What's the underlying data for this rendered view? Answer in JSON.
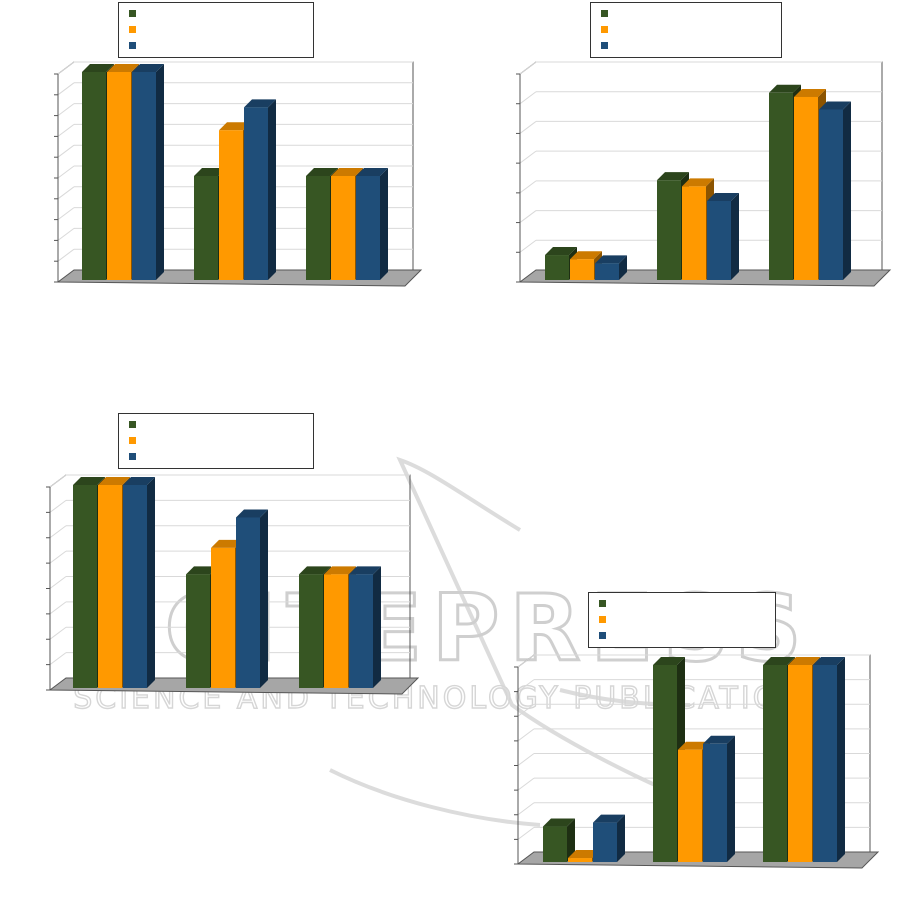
{
  "colors": {
    "series": [
      "#375623",
      "#ff9900",
      "#1f4e79"
    ],
    "floor": "#a6a6a6",
    "grid": "#d9d9d9"
  },
  "watermark": {
    "main": "SCITEPRESS",
    "sub": "SCIENCE AND TECHNOLOGY PUBLICATIONS"
  },
  "chart_data": [
    {
      "type": "bar",
      "categories": [
        "",
        "",
        ""
      ],
      "series": [
        {
          "name": "",
          "values": [
            100,
            50,
            50
          ]
        },
        {
          "name": "",
          "values": [
            100,
            72,
            50
          ]
        },
        {
          "name": "",
          "values": [
            100,
            83,
            50
          ]
        }
      ],
      "ylim": [
        0,
        100
      ],
      "gridlines": 10,
      "grid": true,
      "legend": "top"
    },
    {
      "type": "bar",
      "categories": [
        "",
        "",
        ""
      ],
      "series": [
        {
          "name": "",
          "values": [
            12,
            48,
            90
          ]
        },
        {
          "name": "",
          "values": [
            10,
            45,
            88
          ]
        },
        {
          "name": "",
          "values": [
            8,
            38,
            82
          ]
        }
      ],
      "ylim": [
        0,
        100
      ],
      "gridlines": 7,
      "grid": true,
      "legend": "top"
    },
    {
      "type": "bar",
      "categories": [
        "",
        "",
        ""
      ],
      "series": [
        {
          "name": "",
          "values": [
            100,
            56,
            56
          ]
        },
        {
          "name": "",
          "values": [
            100,
            69,
            56
          ]
        },
        {
          "name": "",
          "values": [
            100,
            84,
            56
          ]
        }
      ],
      "ylim": [
        0,
        100
      ],
      "gridlines": 8,
      "grid": true,
      "legend": "top"
    },
    {
      "type": "bar",
      "categories": [
        "",
        "",
        ""
      ],
      "series": [
        {
          "name": "",
          "values": [
            18,
            100,
            100
          ]
        },
        {
          "name": "",
          "values": [
            2,
            57,
            100
          ]
        },
        {
          "name": "",
          "values": [
            20,
            60,
            100
          ]
        }
      ],
      "ylim": [
        0,
        100
      ],
      "gridlines": 8,
      "grid": true,
      "legend": "top"
    }
  ]
}
